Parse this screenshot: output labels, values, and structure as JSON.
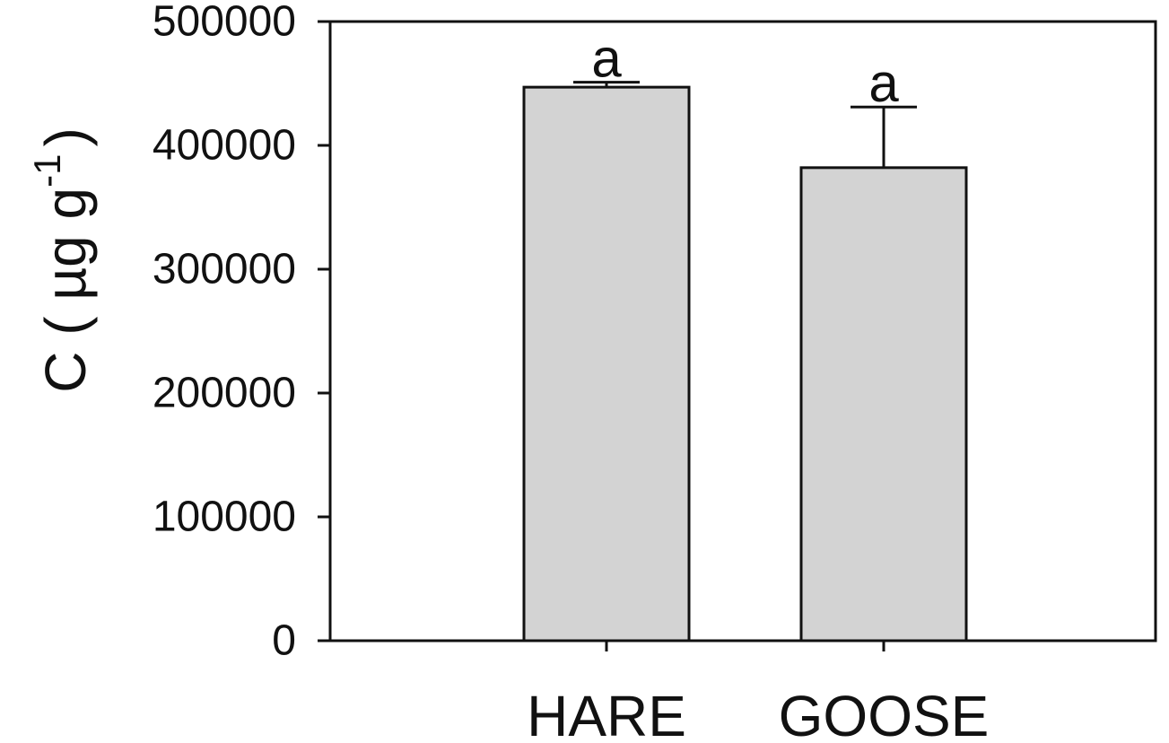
{
  "chart_data": {
    "type": "bar",
    "title": "",
    "xlabel": "",
    "ylabel": {
      "main": "C ( µg g",
      "superscript": "-1",
      "close": ")"
    },
    "ylim": [
      0,
      500000
    ],
    "yticks": [
      0,
      100000,
      200000,
      300000,
      400000,
      500000
    ],
    "ytick_labels": [
      "0",
      "100000",
      "200000",
      "300000",
      "400000",
      "500000"
    ],
    "categories": [
      "HARE",
      "GOOSE"
    ],
    "values": [
      447000,
      382000
    ],
    "error_upper": [
      451000,
      431000
    ],
    "significance_labels": [
      "a",
      "a"
    ],
    "bar_color": "#d3d3d3",
    "edge_color": "#111111",
    "grid": false,
    "legend": "none"
  }
}
